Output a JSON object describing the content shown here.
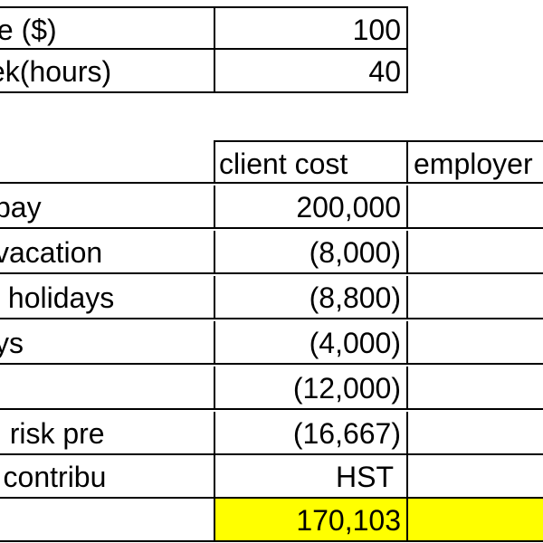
{
  "rates": [
    {
      "label": "te ($)",
      "value": "100"
    },
    {
      "label": "ek(hours)",
      "value": "40"
    }
  ],
  "header": {
    "col1": "client cost",
    "col2": "employer"
  },
  "rows": [
    {
      "label": "pay",
      "value": "200,000"
    },
    {
      "label": "vacation",
      "value": "(8,000)"
    },
    {
      "label": "c holidays",
      "value": "(8,800)"
    },
    {
      "label": "ys",
      "value": "(4,000)"
    },
    {
      "label": "",
      "value": "(12,000)"
    },
    {
      "label": "n risk pre",
      "value": "(16,667)"
    },
    {
      "label": "r contribu",
      "value": "HST"
    },
    {
      "label": "",
      "value": "170,103"
    }
  ],
  "colors": {
    "highlight": "#ffff00",
    "grid": "#000000"
  }
}
